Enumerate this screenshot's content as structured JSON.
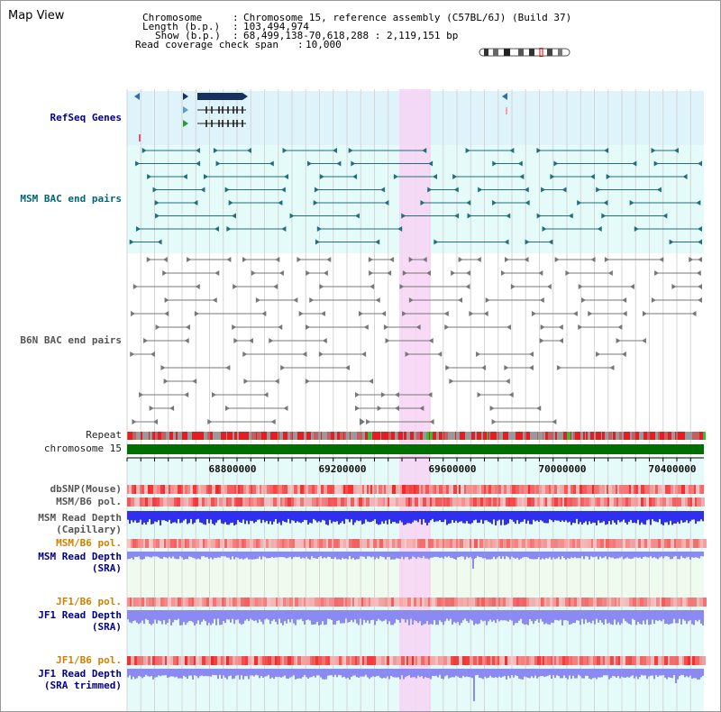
{
  "app": {
    "title": "Map View"
  },
  "header": {
    "chromosome_label": "Chromosome",
    "chromosome_value": "Chromosome 15, reference assembly (C57BL/6J) (Build 37)",
    "length_label": "Length (b.p.)",
    "length_value": "103,494,974",
    "show_label": "Show (b.p.)",
    "show_value": "68,499,138-70,618,288 : 2,119,151 bp",
    "coverage_label": "Read coverage check span",
    "coverage_value": "10,000"
  },
  "tracks": {
    "refseq": "RefSeq Genes",
    "msm_bac": "MSM BAC end pairs",
    "b6n_bac": "B6N BAC end pairs",
    "repeat": "Repeat",
    "chromosome": "chromosome 15",
    "dbsnp": "dbSNP(Mouse)",
    "msm_b6_pol": "MSM/B6 pol.",
    "msm_depth_cap_1": "MSM Read Depth",
    "msm_depth_cap_2": "(Capillary)",
    "msm_b6_pol_2": "MSM/B6 pol.",
    "msm_depth_sra_1": "MSM Read Depth",
    "msm_depth_sra_2": "(SRA)",
    "jf1_b6_pol": "JF1/B6 pol.",
    "jf1_depth_sra_1": "JF1 Read Depth",
    "jf1_depth_sra_2": "(SRA)",
    "jf1_b6_pol_2": "JF1/B6 pol.",
    "jf1_depth_trim_1": "JF1 Read Depth",
    "jf1_depth_trim_2": "(SRA trimmed)"
  },
  "axis": {
    "ticks": [
      "68800000",
      "69200000",
      "69600000",
      "70000000",
      "70400000"
    ]
  },
  "colors": {
    "refseq_bg": "#dff3fb",
    "msm_bg": "#e4fbf9",
    "b6n_bg": "#ffffff",
    "highlight": "#f8d4f4",
    "chromosome_bar": "#006f00",
    "depth_blue": "#2f2ff0",
    "depth_light": "#8a8af2",
    "pol_red": "#ec3838",
    "msm_feature": "#1f6f7d",
    "b6n_feature": "#777777",
    "refseq_feature": "#15315c"
  }
}
